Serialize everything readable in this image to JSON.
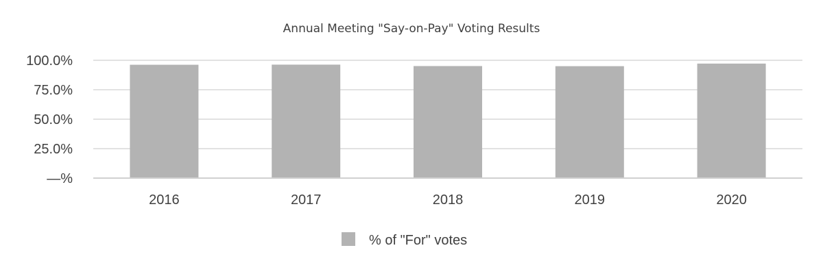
{
  "chart_data": {
    "type": "bar",
    "title": "Annual Meeting \"Say-on-Pay\" Voting Results",
    "categories": [
      "2016",
      "2017",
      "2018",
      "2019",
      "2020"
    ],
    "series": [
      {
        "name": "% of \"For\" votes",
        "values": [
          96.2,
          96.3,
          95.1,
          95.0,
          97.2
        ],
        "color": "#b3b3b3"
      }
    ],
    "ylim": [
      0,
      100
    ],
    "yticks": [
      0,
      25,
      50,
      75,
      100
    ],
    "ytick_labels": [
      "—%",
      "25.0%",
      "50.0%",
      "75.0%",
      "100.0%"
    ],
    "grid": true,
    "legend_position": "bottom-center"
  }
}
